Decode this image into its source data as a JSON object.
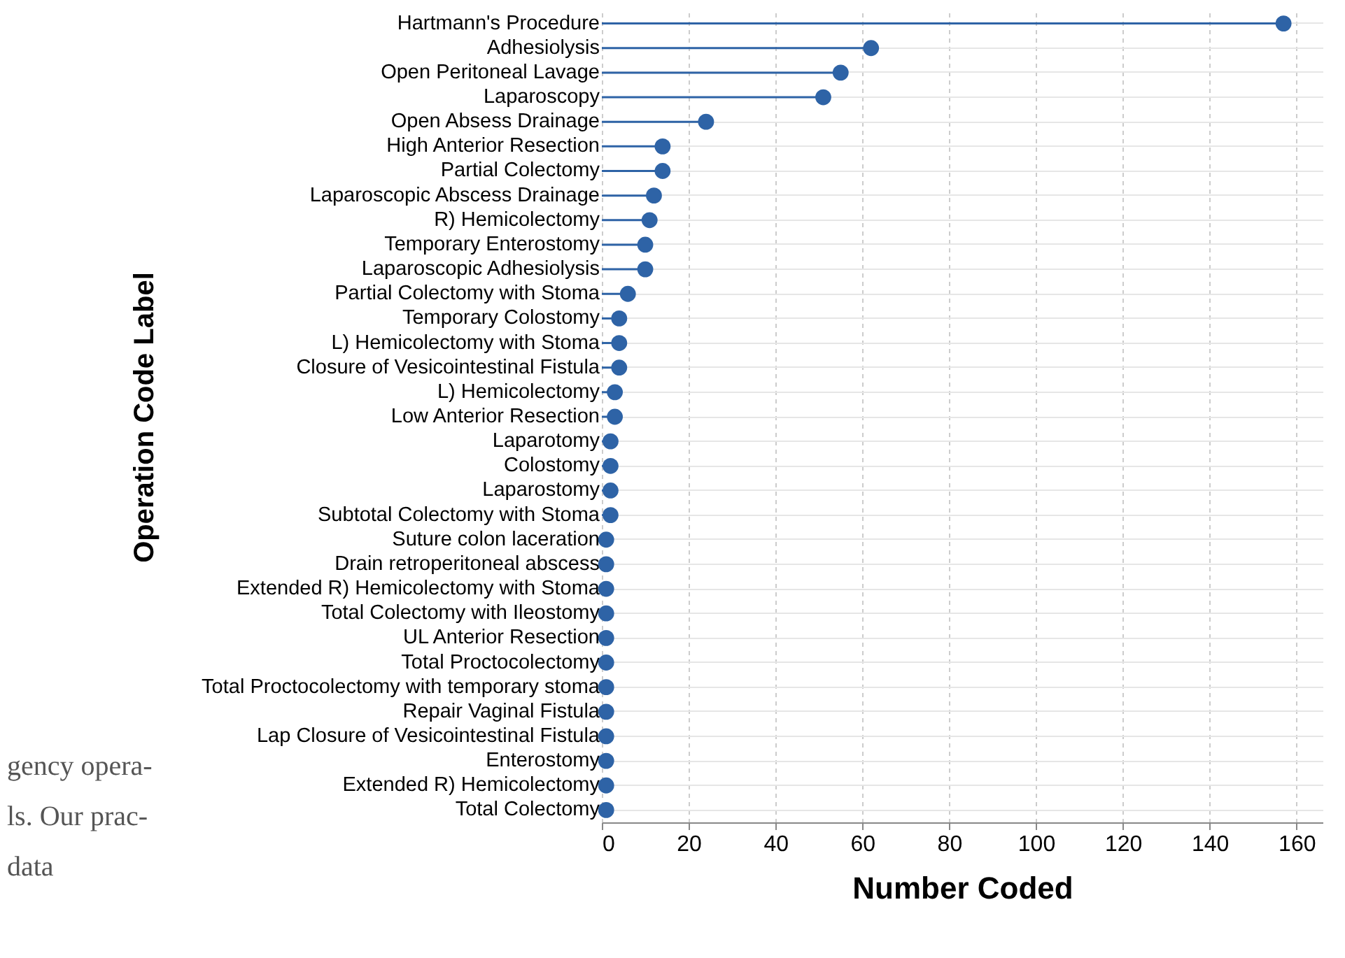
{
  "chart_data": {
    "type": "lollipop",
    "orientation": "horizontal",
    "xlabel": "Number Coded",
    "ylabel": "Operation Code Label",
    "categories": [
      "Hartmann's Procedure",
      "Adhesiolysis",
      "Open Peritoneal Lavage",
      "Laparoscopy",
      "Open Absess Drainage",
      "High Anterior Resection",
      "Partial Colectomy",
      "Laparoscopic Abscess Drainage",
      "R) Hemicolectomy",
      "Temporary Enterostomy",
      "Laparoscopic Adhesiolysis",
      "Partial Colectomy with Stoma",
      "Temporary Colostomy",
      "L) Hemicolectomy with Stoma",
      "Closure of Vesicointestinal Fistula",
      "L) Hemicolectomy",
      "Low Anterior Resection",
      "Laparotomy",
      "Colostomy",
      "Laparostomy",
      "Subtotal Colectomy with Stoma",
      "Suture colon laceration",
      "Drain retroperitoneal abscess",
      "Extended R) Hemicolectomy with Stoma",
      "Total Colectomy with Ileostomy",
      "UL Anterior Resection",
      "Total Proctocolectomy",
      "Total Proctocolectomy with temporary stoma",
      "Repair Vaginal Fistula",
      "Lap Closure of Vesicointestinal Fistula",
      "Enterostomy",
      "Extended R) Hemicolectomy",
      "Total Colectomy"
    ],
    "values": [
      157,
      62,
      55,
      51,
      24,
      14,
      14,
      12,
      11,
      10,
      10,
      6,
      4,
      4,
      4,
      3,
      3,
      2,
      2,
      2,
      2,
      1,
      1,
      1,
      1,
      1,
      1,
      1,
      1,
      1,
      1,
      1,
      1
    ],
    "color": "#2e63a6",
    "xlim": [
      0,
      166
    ],
    "xticks": [
      0,
      20,
      40,
      60,
      80,
      100,
      120,
      140,
      160
    ],
    "grid": true,
    "marker": "circle",
    "annotations": [
      "gency opera-",
      "ls. Our prac-",
      "data"
    ]
  }
}
